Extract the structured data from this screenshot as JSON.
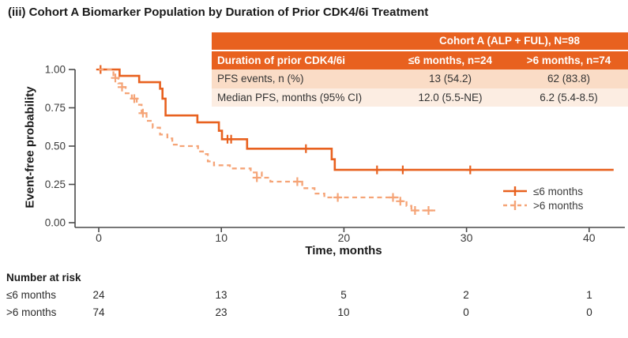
{
  "title": "(iii) Cohort A Biomarker Population by Duration of Prior CDK4/6i Treatment",
  "colors": {
    "accent_orange": "#E8611F",
    "light_orange": "#F5A477",
    "row_bg_dark": "#FADCC6",
    "row_bg_light": "#FCEDE2",
    "axis_gray": "#4a4a4a",
    "text_dark": "#1a1a1a"
  },
  "summary_table": {
    "cohort_header": "Cohort A (ALP + FUL), N=98",
    "col_headers": [
      "Duration of prior CDK4/6i",
      "≤6 months, n=24",
      ">6 months, n=74"
    ],
    "rows": [
      {
        "label": "PFS events, n (%)",
        "le6": "13 (54.2)",
        "gt6": "62 (83.8)"
      },
      {
        "label": "Median PFS, months (95% CI)",
        "le6": "12.0 (5.5-NE)",
        "gt6": "6.2 (5.4-8.5)"
      }
    ]
  },
  "chart_data": {
    "type": "line",
    "subtype": "kaplan-meier-step",
    "title": "(iii) Cohort A Biomarker Population by Duration of Prior CDK4/6i Treatment",
    "xlabel": "Time, months",
    "ylabel": "Event-free probability",
    "xlim": [
      0,
      42
    ],
    "ylim": [
      0,
      1.0
    ],
    "xticks": [
      0,
      10,
      20,
      30,
      40
    ],
    "yticks": [
      "0.00",
      "0.25",
      "0.50",
      "0.75",
      "1.00"
    ],
    "ytick_values": [
      0,
      0.25,
      0.5,
      0.75,
      1.0
    ],
    "grid": false,
    "legend_position": "bottom-right",
    "series": [
      {
        "name": "≤6 months",
        "style": "solid",
        "color": "#E8611F",
        "n": 24,
        "median_pfs": "12.0 (5.5-NE)",
        "steps": [
          [
            0,
            1.0
          ],
          [
            1.7,
            0.958
          ],
          [
            3.3,
            0.917
          ],
          [
            5.0,
            0.875
          ],
          [
            5.2,
            0.81
          ],
          [
            5.45,
            0.7
          ],
          [
            8.05,
            0.655
          ],
          [
            9.8,
            0.6
          ],
          [
            10.05,
            0.545
          ],
          [
            12.1,
            0.483
          ],
          [
            19.0,
            0.414
          ],
          [
            19.25,
            0.345
          ]
        ],
        "end_time": 42,
        "censors": [
          [
            0.15,
            1.0
          ],
          [
            10.5,
            0.545
          ],
          [
            10.8,
            0.545
          ],
          [
            16.9,
            0.483
          ],
          [
            22.7,
            0.345
          ],
          [
            24.8,
            0.345
          ],
          [
            30.3,
            0.345
          ]
        ]
      },
      {
        "name": ">6 months",
        "style": "dashed",
        "color": "#F5A477",
        "n": 74,
        "median_pfs": "6.2 (5.4-8.5)",
        "steps": [
          [
            0,
            1.0
          ],
          [
            1.2,
            0.945
          ],
          [
            1.6,
            0.91
          ],
          [
            1.9,
            0.885
          ],
          [
            2.2,
            0.845
          ],
          [
            2.7,
            0.81
          ],
          [
            3.1,
            0.77
          ],
          [
            3.5,
            0.715
          ],
          [
            3.9,
            0.665
          ],
          [
            4.4,
            0.62
          ],
          [
            5.0,
            0.575
          ],
          [
            5.6,
            0.55
          ],
          [
            6.0,
            0.51
          ],
          [
            6.6,
            0.5
          ],
          [
            8.1,
            0.465
          ],
          [
            8.5,
            0.448
          ],
          [
            8.9,
            0.4
          ],
          [
            9.4,
            0.375
          ],
          [
            10.7,
            0.354
          ],
          [
            12.4,
            0.328
          ],
          [
            13.3,
            0.294
          ],
          [
            14.0,
            0.268
          ],
          [
            16.6,
            0.225
          ],
          [
            17.6,
            0.19
          ],
          [
            18.4,
            0.165
          ],
          [
            24.6,
            0.14
          ],
          [
            25.1,
            0.11
          ],
          [
            25.5,
            0.08
          ]
        ],
        "end_time": 27.6,
        "censors": [
          [
            1.35,
            0.945
          ],
          [
            1.9,
            0.885
          ],
          [
            2.9,
            0.81
          ],
          [
            3.6,
            0.715
          ],
          [
            12.9,
            0.294
          ],
          [
            16.2,
            0.268
          ],
          [
            19.5,
            0.165
          ],
          [
            24.0,
            0.165
          ],
          [
            24.6,
            0.14
          ],
          [
            25.8,
            0.08
          ],
          [
            26.9,
            0.08
          ]
        ]
      }
    ]
  },
  "risk_table": {
    "heading": "Number at risk",
    "times": [
      0,
      10,
      20,
      30,
      40
    ],
    "rows": [
      {
        "label": "≤6 months",
        "counts": [
          "24",
          "13",
          "5",
          "2",
          "1"
        ]
      },
      {
        "label": ">6 months",
        "counts": [
          "74",
          "23",
          "10",
          "0",
          "0"
        ]
      }
    ]
  },
  "legend": {
    "items": [
      {
        "label": "≤6 months"
      },
      {
        "label": ">6 months"
      }
    ]
  }
}
